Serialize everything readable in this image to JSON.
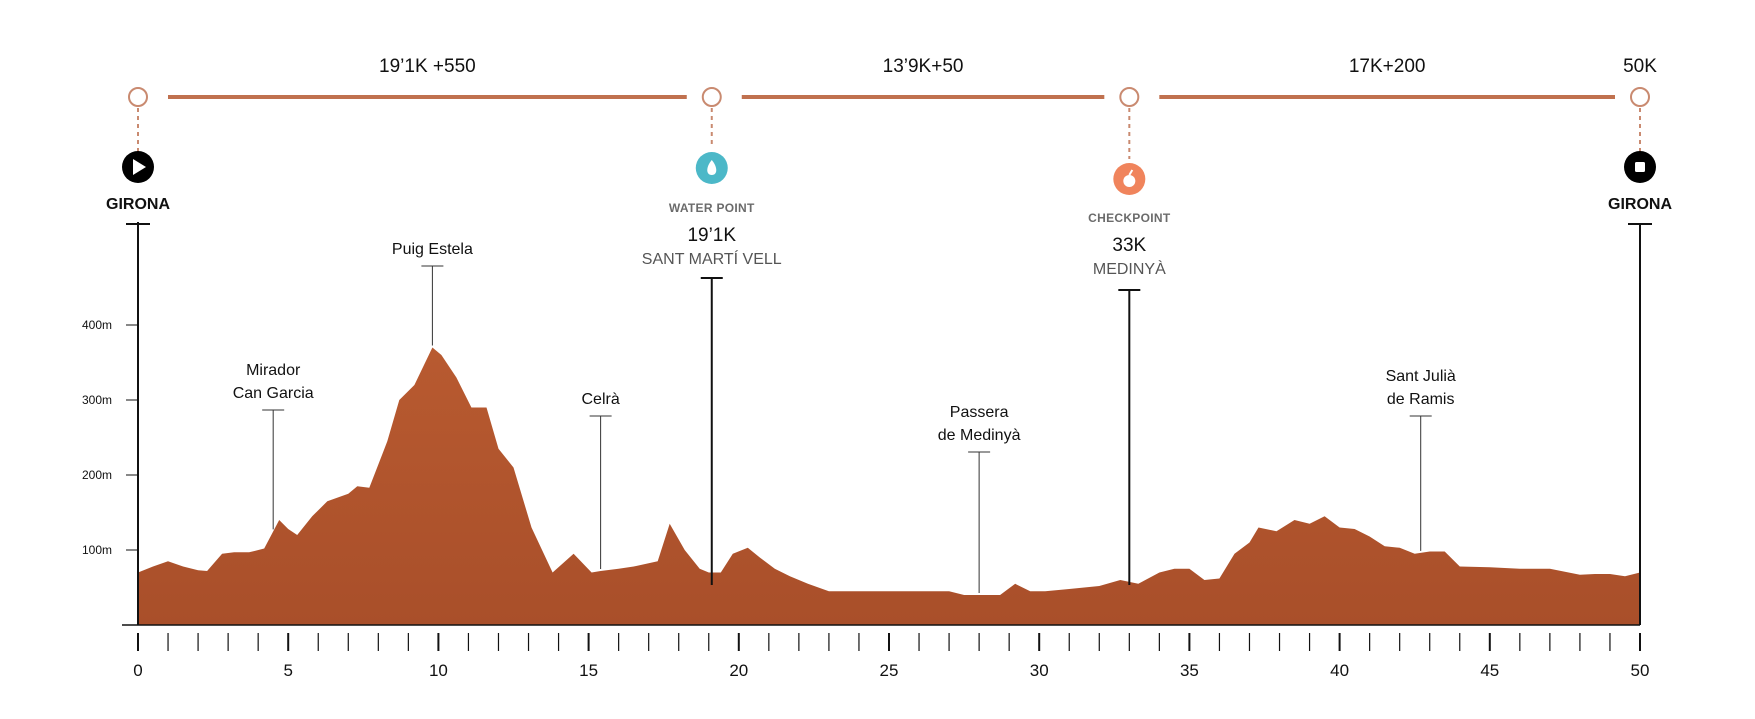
{
  "chart_data": {
    "type": "area",
    "title": "",
    "xlabel": "",
    "ylabel": "",
    "xlim": [
      0,
      50
    ],
    "ylim": [
      0,
      400
    ],
    "x_ticks": [
      0,
      5,
      10,
      15,
      20,
      25,
      30,
      35,
      40,
      45,
      50
    ],
    "x_minor_step": 1,
    "y_ticks": [
      {
        "value": 100,
        "label": "100m"
      },
      {
        "value": 200,
        "label": "200m"
      },
      {
        "value": 300,
        "label": "300m"
      },
      {
        "value": 400,
        "label": "400m"
      }
    ],
    "fill_color": "#b5592e",
    "line_color": "#c07556",
    "elevation": {
      "x": [
        0,
        0.5,
        1,
        1.5,
        2,
        2.3,
        2.8,
        3.2,
        3.7,
        4.2,
        4.7,
        5,
        5.3,
        5.8,
        6.3,
        7,
        7.3,
        7.7,
        8.3,
        8.7,
        9.2,
        9.8,
        10.1,
        10.6,
        11.1,
        11.6,
        12,
        12.5,
        13.1,
        13.8,
        14.5,
        15.1,
        15.4,
        16,
        16.5,
        17.3,
        17.7,
        18.2,
        18.7,
        19,
        19.4,
        19.8,
        20.3,
        20.7,
        21.2,
        21.7,
        22.3,
        23,
        24,
        25,
        26,
        27,
        27.5,
        28,
        28.7,
        29.2,
        29.7,
        30.2,
        31,
        32,
        32.7,
        33.3,
        34,
        34.5,
        35,
        35.5,
        36,
        36.5,
        37,
        37.3,
        37.9,
        38.5,
        39,
        39.5,
        40,
        40.5,
        41,
        41.5,
        42,
        42.5,
        43,
        43.5,
        44,
        45,
        46,
        47,
        48,
        48.5,
        49,
        49.5,
        50
      ],
      "y": [
        70,
        78,
        85,
        78,
        73,
        72,
        95,
        97,
        97,
        102,
        140,
        128,
        120,
        145,
        165,
        175,
        185,
        183,
        245,
        300,
        320,
        370,
        360,
        330,
        290,
        290,
        235,
        210,
        130,
        70,
        95,
        70,
        72,
        75,
        78,
        85,
        135,
        100,
        75,
        70,
        70,
        95,
        103,
        90,
        75,
        65,
        55,
        45,
        45,
        45,
        45,
        45,
        40,
        40,
        40,
        55,
        45,
        45,
        48,
        52,
        60,
        55,
        70,
        75,
        75,
        60,
        62,
        95,
        110,
        130,
        125,
        140,
        135,
        145,
        130,
        128,
        118,
        105,
        103,
        95,
        98,
        98,
        78,
        77,
        75,
        75,
        67,
        68,
        68,
        65,
        70
      ]
    },
    "segments": [
      {
        "label": "19’1K +550"
      },
      {
        "label": "13’9K+50"
      },
      {
        "label": "17K+200"
      }
    ],
    "total_label": "50K",
    "start": {
      "x": 0,
      "label": "GIRONA"
    },
    "finish": {
      "x": 50,
      "label": "GIRONA"
    },
    "services": [
      {
        "x": 19.1,
        "type": "WATER POINT",
        "km": "19’1K",
        "name": "SANT MARTÍ VELL",
        "color": "#4cb8c8",
        "icon": "water-drop-icon"
      },
      {
        "x": 33,
        "type": "CHECKPOINT",
        "km": "33K",
        "name": "MEDINYÀ",
        "color": "#f0845c",
        "icon": "apple-icon"
      }
    ],
    "points_of_interest": [
      {
        "x": 4.5,
        "label_lines": [
          "Mirador",
          "Can Garcia"
        ]
      },
      {
        "x": 9.8,
        "label_lines": [
          "Puig Estela"
        ]
      },
      {
        "x": 15.4,
        "label_lines": [
          "Celrà"
        ]
      },
      {
        "x": 28,
        "label_lines": [
          "Passera",
          "de Medinyà"
        ]
      },
      {
        "x": 42.7,
        "label_lines": [
          "Sant Julià",
          "de Ramis"
        ]
      }
    ]
  }
}
